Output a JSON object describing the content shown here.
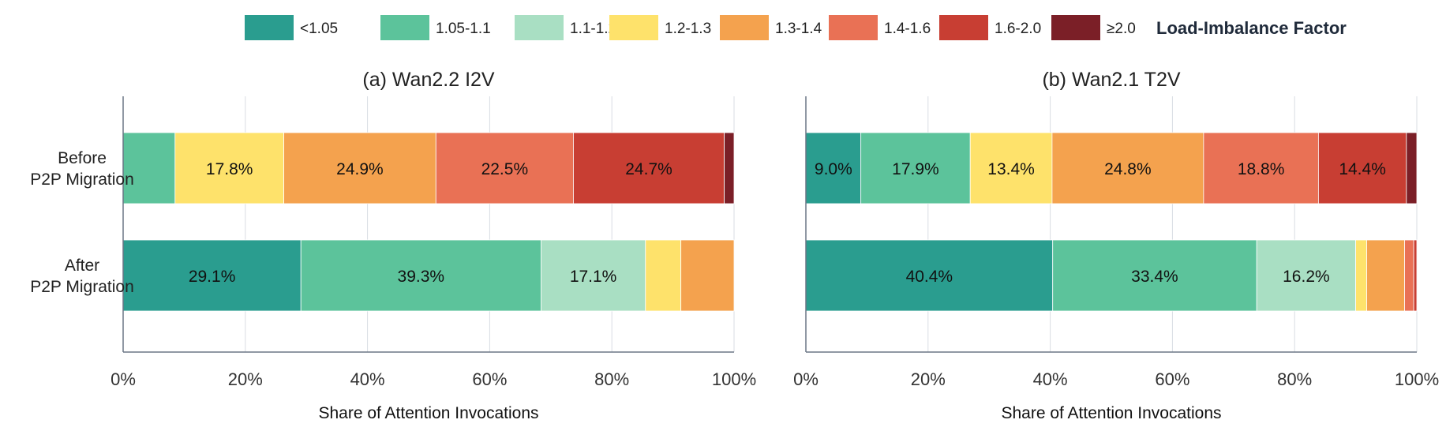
{
  "colors": {
    "lt_1_05": "#2a9d8f",
    "b_1_05_1_1": "#5cc39b",
    "b_1_1_1_2": "#a9dfc3",
    "b_1_2_1_3": "#fee26b",
    "b_1_3_1_4": "#f4a24e",
    "b_1_4_1_6": "#e97155",
    "b_1_6_2_0": "#c83e33",
    "ge_2_0": "#7b1f27",
    "grid": "#d9dde3",
    "axis": "#6b7685"
  },
  "legend": {
    "title": "Load-Imbalance Factor",
    "items": [
      {
        "label": "<1.05",
        "color": "#2a9d8f"
      },
      {
        "label": "1.05-1.1",
        "color": "#5cc39b"
      },
      {
        "label": "1.1-1.2",
        "color": "#a9dfc3"
      },
      {
        "label": "1.2-1.3",
        "color": "#fee26b"
      },
      {
        "label": "1.3-1.4",
        "color": "#f4a24e"
      },
      {
        "label": "1.4-1.6",
        "color": "#e97155"
      },
      {
        "label": "1.6-2.0",
        "color": "#c83e33"
      },
      {
        "label": "≥2.0",
        "color": "#7b1f27"
      }
    ]
  },
  "chart_data": [
    {
      "type": "bar",
      "orientation": "horizontal",
      "stacked": true,
      "title": "(a) Wan2.2 I2V",
      "xlabel": "Share of Attention Invocations",
      "xlim": [
        0,
        100
      ],
      "x_ticks": [
        "0%",
        "20%",
        "40%",
        "60%",
        "80%",
        "100%"
      ],
      "grid": true,
      "legend_position": "top",
      "categories": [
        "Before\nP2P Migration",
        "After\nP2P Migration"
      ],
      "series": [
        {
          "name": "<1.05",
          "values": [
            0.0,
            29.1
          ],
          "labels": [
            "",
            "29.1%"
          ]
        },
        {
          "name": "1.05-1.1",
          "values": [
            8.5,
            39.3
          ],
          "labels": [
            "",
            "39.3%"
          ]
        },
        {
          "name": "1.1-1.2",
          "values": [
            0.0,
            17.1
          ],
          "labels": [
            "",
            "17.1%"
          ]
        },
        {
          "name": "1.2-1.3",
          "values": [
            17.8,
            5.8
          ],
          "labels": [
            "17.8%",
            ""
          ]
        },
        {
          "name": "1.3-1.4",
          "values": [
            24.9,
            8.7
          ],
          "labels": [
            "24.9%",
            ""
          ]
        },
        {
          "name": "1.4-1.6",
          "values": [
            22.5,
            0.0
          ],
          "labels": [
            "22.5%",
            ""
          ]
        },
        {
          "name": "1.6-2.0",
          "values": [
            24.7,
            0.0
          ],
          "labels": [
            "24.7%",
            ""
          ]
        },
        {
          "name": "≥2.0",
          "values": [
            1.6,
            0.0
          ],
          "labels": [
            "",
            ""
          ]
        }
      ]
    },
    {
      "type": "bar",
      "orientation": "horizontal",
      "stacked": true,
      "title": "(b) Wan2.1 T2V",
      "xlabel": "Share of Attention Invocations",
      "xlim": [
        0,
        100
      ],
      "x_ticks": [
        "0%",
        "20%",
        "40%",
        "60%",
        "80%",
        "100%"
      ],
      "grid": true,
      "legend_position": "top",
      "categories": [
        "Before\nP2P Migration",
        "After\nP2P Migration"
      ],
      "series": [
        {
          "name": "<1.05",
          "values": [
            9.0,
            40.4
          ],
          "labels": [
            "9.0%",
            "40.4%"
          ]
        },
        {
          "name": "1.05-1.1",
          "values": [
            17.9,
            33.4
          ],
          "labels": [
            "17.9%",
            "33.4%"
          ]
        },
        {
          "name": "1.1-1.2",
          "values": [
            0.0,
            16.2
          ],
          "labels": [
            "",
            "16.2%"
          ]
        },
        {
          "name": "1.2-1.3",
          "values": [
            13.4,
            1.8
          ],
          "labels": [
            "13.4%",
            ""
          ]
        },
        {
          "name": "1.3-1.4",
          "values": [
            24.8,
            6.2
          ],
          "labels": [
            "24.8%",
            ""
          ]
        },
        {
          "name": "1.4-1.6",
          "values": [
            18.8,
            1.5
          ],
          "labels": [
            "18.8%",
            ""
          ]
        },
        {
          "name": "1.6-2.0",
          "values": [
            14.4,
            0.5
          ],
          "labels": [
            "14.4%",
            ""
          ]
        },
        {
          "name": "≥2.0",
          "values": [
            1.7,
            0.0
          ],
          "labels": [
            "",
            ""
          ]
        }
      ]
    }
  ]
}
